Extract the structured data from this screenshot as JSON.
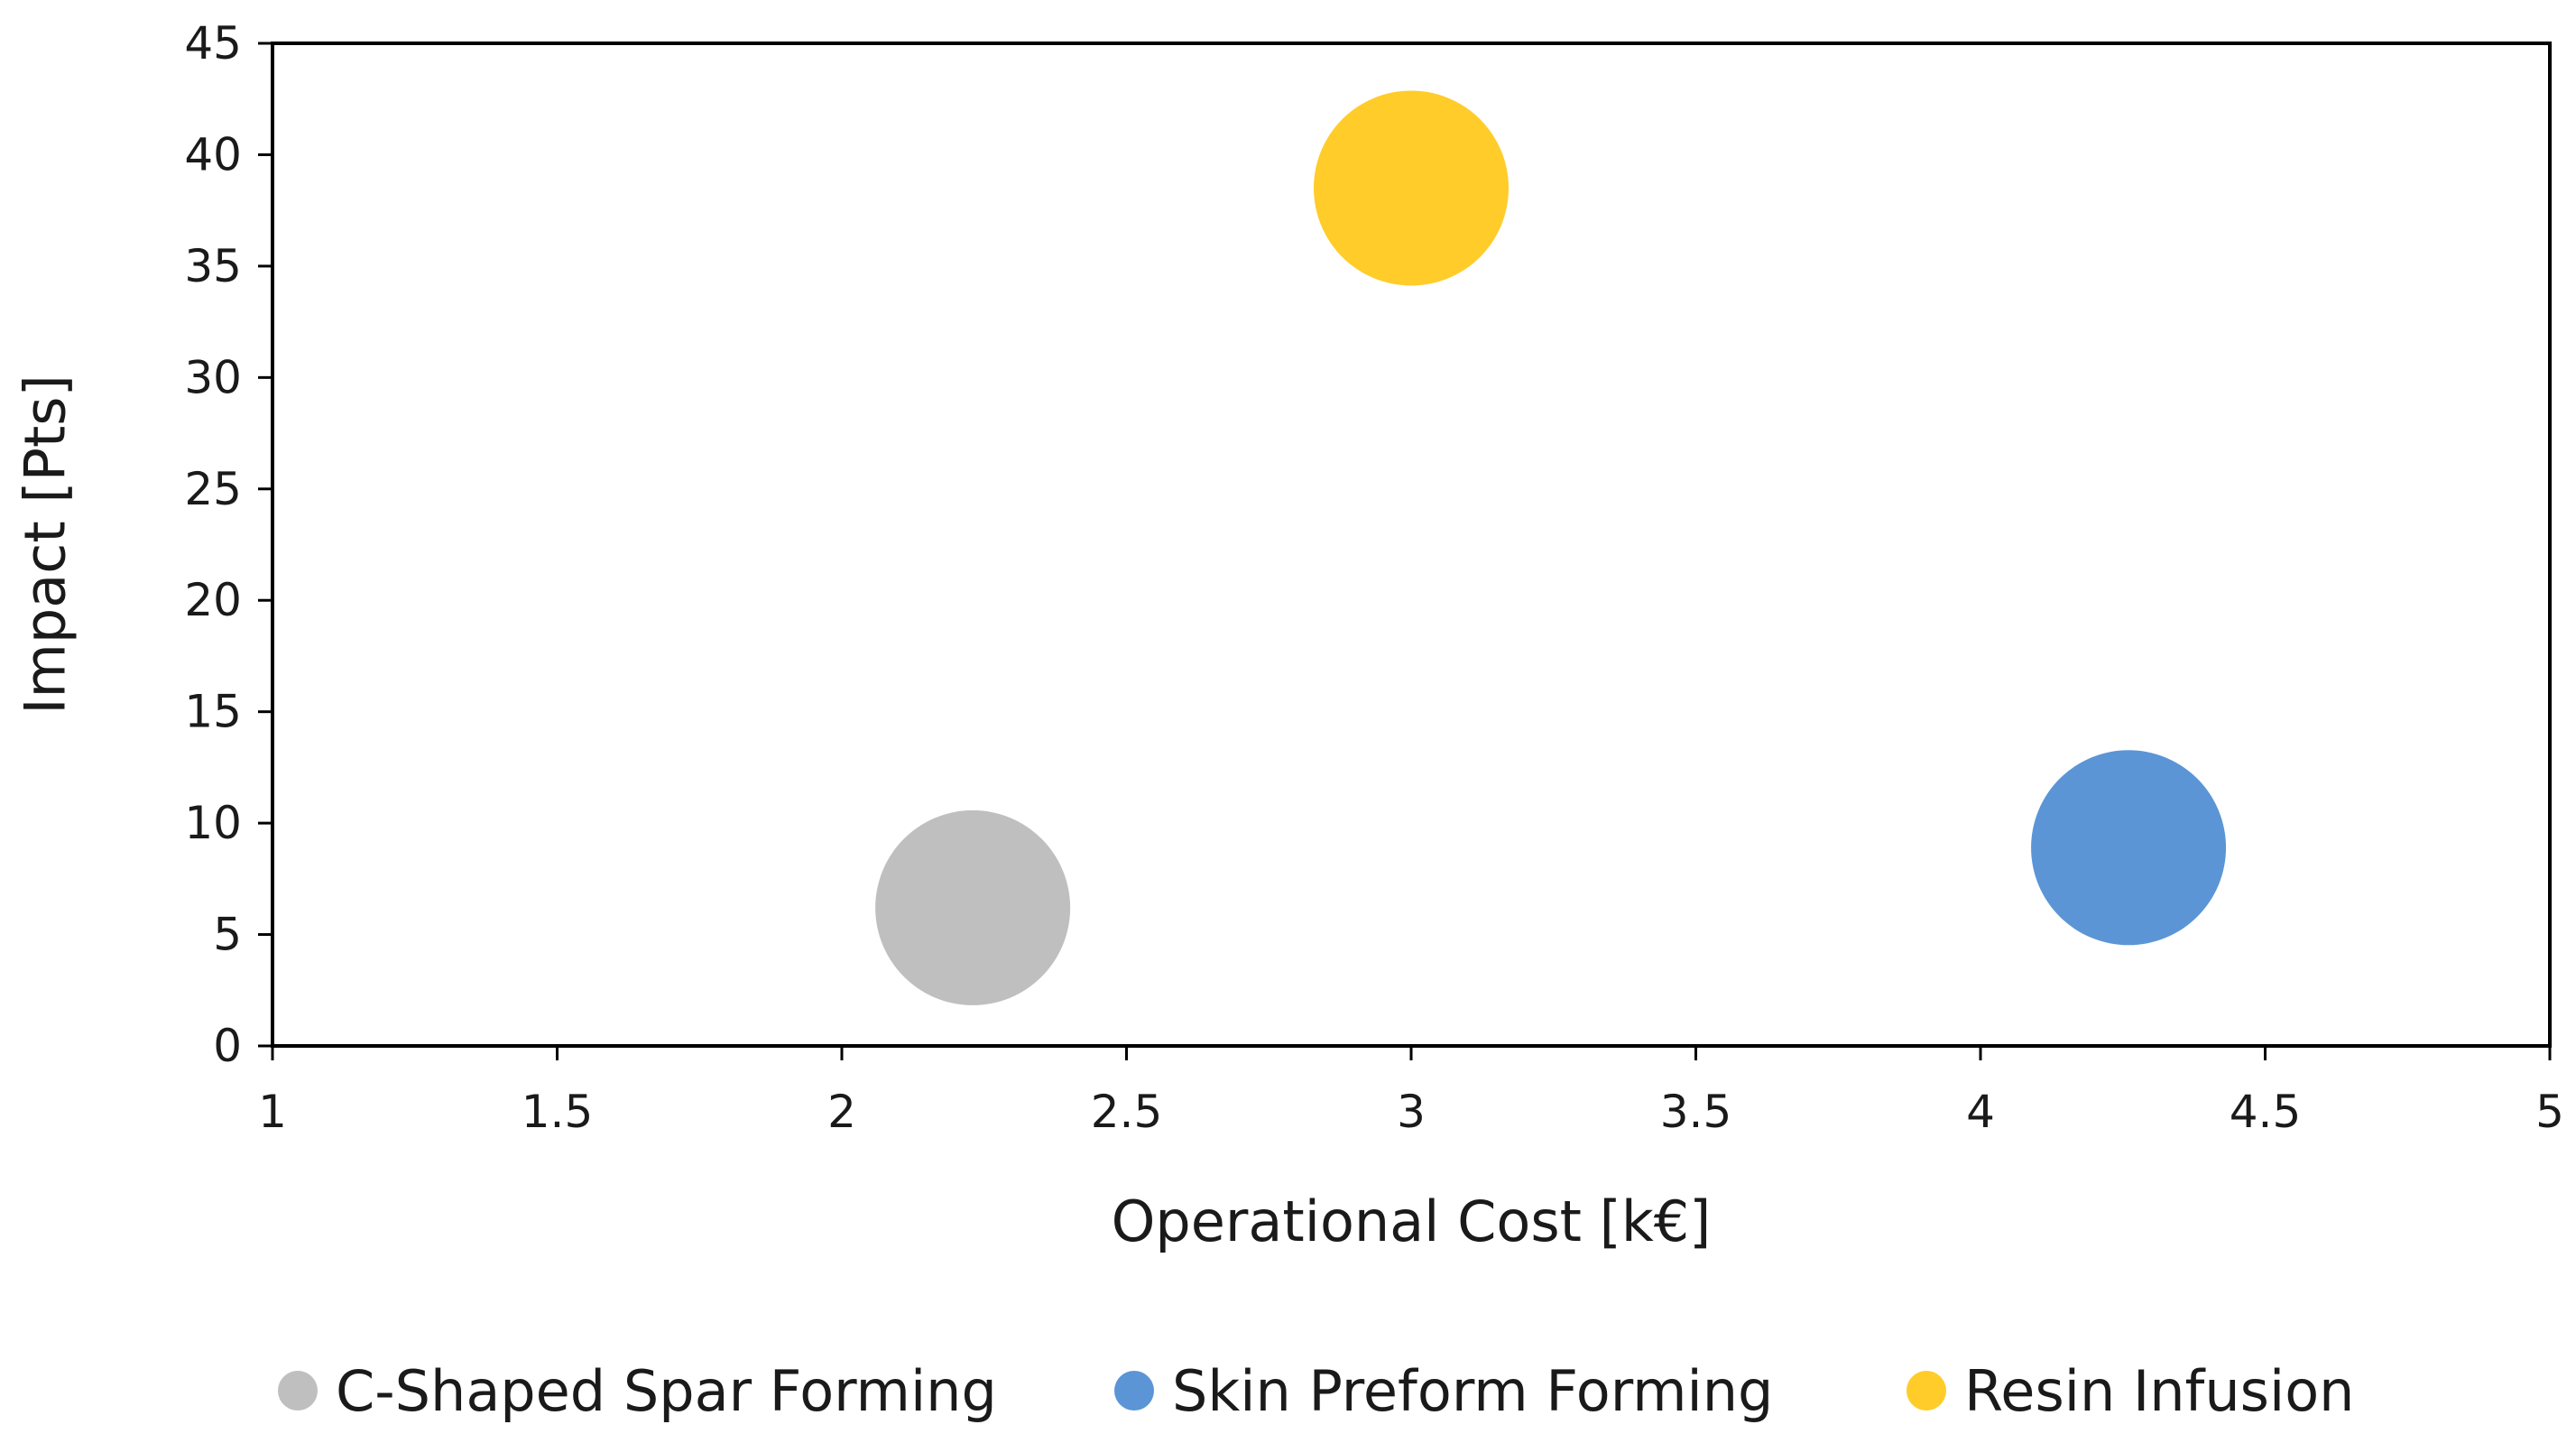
{
  "chart_data": {
    "type": "bubble",
    "title": "",
    "xlabel": "Operational Cost [k€]",
    "ylabel": "Impact [Pts]",
    "xlim": [
      1,
      5
    ],
    "ylim": [
      0,
      45
    ],
    "x_ticks": [
      "1",
      "1.5",
      "2",
      "2.5",
      "3",
      "3.5",
      "4",
      "4.5",
      "5"
    ],
    "y_ticks": [
      "0",
      "5",
      "10",
      "15",
      "20",
      "25",
      "30",
      "35",
      "40",
      "45"
    ],
    "grid": false,
    "legend_position": "bottom",
    "series": [
      {
        "name": "C-Shaped Spar Forming",
        "x": 2.23,
        "y": 6.2,
        "color": "#bfbfbf"
      },
      {
        "name": "Skin Preform Forming",
        "x": 4.26,
        "y": 8.9,
        "color": "#5b95d5"
      },
      {
        "name": "Resin Infusion",
        "x": 3.0,
        "y": 38.5,
        "color": "#ffcc29"
      }
    ]
  }
}
